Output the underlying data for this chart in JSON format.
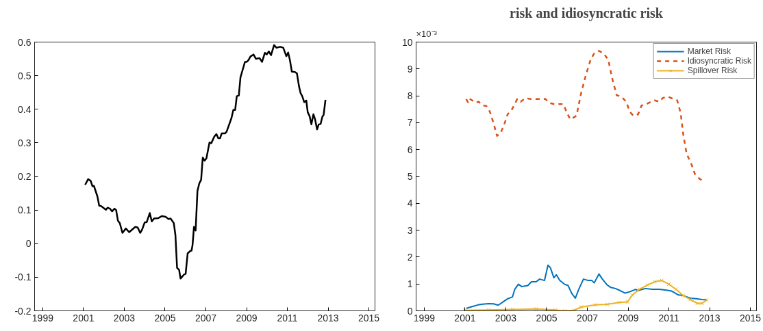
{
  "chart_data": [
    {
      "type": "line",
      "xlim": [
        1998.6,
        2015.3
      ],
      "ylim": [
        -0.2,
        0.6
      ],
      "xticks": [
        1999,
        2001,
        2003,
        2005,
        2007,
        2009,
        2011,
        2013,
        2015
      ],
      "yticks": [
        -0.2,
        -0.1,
        0,
        0.1,
        0.2,
        0.3,
        0.4,
        0.5,
        0.6
      ],
      "grid": false,
      "legend": false,
      "series": [
        {
          "color": "#000000",
          "x": [
            2001.08,
            2001.23,
            2001.35,
            2001.44,
            2001.51,
            2001.68,
            2001.77,
            2001.86,
            2002.1,
            2002.18,
            2002.3,
            2002.4,
            2002.52,
            2002.6,
            2002.69,
            2002.78,
            2002.91,
            2003.08,
            2003.24,
            2003.54,
            2003.66,
            2003.78,
            2003.87,
            2004.0,
            2004.1,
            2004.25,
            2004.35,
            2004.46,
            2004.67,
            2004.85,
            2005.03,
            2005.17,
            2005.27,
            2005.43,
            2005.51,
            2005.59,
            2005.69,
            2005.76,
            2005.93,
            2006.01,
            2006.11,
            2006.23,
            2006.3,
            2006.35,
            2006.42,
            2006.5,
            2006.59,
            2006.68,
            2006.77,
            2006.85,
            2006.94,
            2007.03,
            2007.18,
            2007.27,
            2007.42,
            2007.52,
            2007.61,
            2007.7,
            2007.78,
            2007.94,
            2008.02,
            2008.26,
            2008.35,
            2008.44,
            2008.52,
            2008.62,
            2008.7,
            2008.92,
            2009.01,
            2009.1,
            2009.19,
            2009.34,
            2009.46,
            2009.64,
            2009.76,
            2009.9,
            2009.99,
            2010.09,
            2010.2,
            2010.35,
            2010.47,
            2010.65,
            2010.8,
            2010.95,
            2011.04,
            2011.13,
            2011.22,
            2011.37,
            2011.47,
            2011.57,
            2011.65,
            2011.73,
            2011.83,
            2011.93,
            2012.0,
            2012.09,
            2012.18,
            2012.28,
            2012.36,
            2012.46,
            2012.54,
            2012.63,
            2012.72,
            2012.78,
            2012.87
          ],
          "values": [
            0.175,
            0.192,
            0.187,
            0.171,
            0.172,
            0.141,
            0.113,
            0.112,
            0.101,
            0.107,
            0.104,
            0.096,
            0.104,
            0.1,
            0.068,
            0.061,
            0.032,
            0.045,
            0.034,
            0.05,
            0.048,
            0.032,
            0.041,
            0.063,
            0.064,
            0.091,
            0.066,
            0.075,
            0.076,
            0.082,
            0.08,
            0.073,
            0.075,
            0.061,
            0.025,
            -0.072,
            -0.078,
            -0.104,
            -0.092,
            -0.09,
            -0.029,
            -0.022,
            -0.021,
            -0.004,
            0.05,
            0.039,
            0.157,
            0.179,
            0.19,
            0.256,
            0.247,
            0.254,
            0.301,
            0.299,
            0.319,
            0.326,
            0.314,
            0.314,
            0.328,
            0.328,
            0.333,
            0.374,
            0.398,
            0.398,
            0.439,
            0.441,
            0.495,
            0.541,
            0.541,
            0.547,
            0.557,
            0.563,
            0.55,
            0.552,
            0.541,
            0.568,
            0.563,
            0.572,
            0.561,
            0.591,
            0.583,
            0.586,
            0.583,
            0.558,
            0.569,
            0.545,
            0.512,
            0.511,
            0.507,
            0.469,
            0.448,
            0.439,
            0.421,
            0.426,
            0.391,
            0.38,
            0.355,
            0.385,
            0.37,
            0.34,
            0.355,
            0.356,
            0.378,
            0.383,
            0.428
          ]
        }
      ]
    },
    {
      "type": "line",
      "title": "risk and idiosyncratic risk",
      "annotations": [
        "×10⁻³"
      ],
      "xlim": [
        1998.6,
        2015.3
      ],
      "ylim": [
        0,
        10
      ],
      "xticks": [
        1999,
        2001,
        2003,
        2005,
        2007,
        2009,
        2011,
        2013,
        2015
      ],
      "yticks": [
        0,
        1,
        2,
        3,
        4,
        5,
        6,
        7,
        8,
        9,
        10
      ],
      "grid": false,
      "legend": "top right",
      "series": [
        {
          "name": "Market Risk",
          "color": "#0072bd",
          "line_style": "solid",
          "x": [
            2001.06,
            2001.35,
            2001.64,
            2001.87,
            2002.16,
            2002.4,
            2002.63,
            2002.92,
            2003.09,
            2003.33,
            2003.44,
            2003.62,
            2003.79,
            2004.08,
            2004.26,
            2004.49,
            2004.66,
            2004.9,
            2005.07,
            2005.19,
            2005.36,
            2005.48,
            2005.65,
            2005.88,
            2006.06,
            2006.23,
            2006.41,
            2006.58,
            2006.81,
            2007.05,
            2007.22,
            2007.34,
            2007.57,
            2007.74,
            2007.98,
            2008.15,
            2008.38,
            2008.62,
            2008.85,
            2009.08,
            2009.37,
            2009.49,
            2009.84,
            2010.19,
            2010.53,
            2010.88,
            2011.12,
            2011.47,
            2011.7,
            2012.05,
            2012.33,
            2012.63,
            2012.86
          ],
          "values": [
            0.09,
            0.16,
            0.22,
            0.25,
            0.27,
            0.26,
            0.21,
            0.36,
            0.45,
            0.52,
            0.8,
            0.99,
            0.9,
            0.94,
            1.08,
            1.08,
            1.18,
            1.13,
            1.7,
            1.6,
            1.23,
            1.34,
            1.13,
            0.99,
            0.94,
            0.66,
            0.47,
            0.8,
            1.18,
            1.13,
            1.13,
            1.04,
            1.37,
            1.18,
            0.96,
            0.87,
            0.83,
            0.75,
            0.66,
            0.71,
            0.8,
            0.75,
            0.83,
            0.8,
            0.8,
            0.77,
            0.74,
            0.59,
            0.57,
            0.47,
            0.45,
            0.42,
            0.41
          ]
        },
        {
          "name": "Idiosyncratic Risk",
          "color": "#d95319",
          "line_style": "dashed",
          "x": [
            2001.06,
            2001.14,
            2001.21,
            2001.35,
            2001.52,
            2001.67,
            2001.87,
            2002.05,
            2002.22,
            2002.4,
            2002.57,
            2002.74,
            2002.92,
            2003.09,
            2003.27,
            2003.44,
            2003.56,
            2003.73,
            2003.97,
            2004.2,
            2004.43,
            2004.72,
            2004.95,
            2005.13,
            2005.36,
            2005.59,
            2005.83,
            2006.0,
            2006.17,
            2006.47,
            2006.7,
            2006.93,
            2007.16,
            2007.34,
            2007.57,
            2007.8,
            2008.03,
            2008.21,
            2008.44,
            2008.67,
            2008.91,
            2009.08,
            2009.26,
            2009.49,
            2009.66,
            2009.9,
            2010.13,
            2010.3,
            2010.53,
            2010.71,
            2010.94,
            2011.17,
            2011.41,
            2011.58,
            2011.7,
            2011.87,
            2012.1,
            2012.28,
            2012.51,
            2012.63
          ],
          "values": [
            7.88,
            7.76,
            7.9,
            7.83,
            7.74,
            7.78,
            7.64,
            7.62,
            7.41,
            6.98,
            6.51,
            6.6,
            6.93,
            7.31,
            7.45,
            7.69,
            7.88,
            7.78,
            7.92,
            7.88,
            7.88,
            7.88,
            7.88,
            7.74,
            7.69,
            7.69,
            7.69,
            7.36,
            7.12,
            7.26,
            8.11,
            8.77,
            9.34,
            9.58,
            9.67,
            9.58,
            9.34,
            8.68,
            8.02,
            7.97,
            7.78,
            7.41,
            7.26,
            7.31,
            7.64,
            7.69,
            7.78,
            7.83,
            7.78,
            7.92,
            7.97,
            7.9,
            7.83,
            7.36,
            6.6,
            5.85,
            5.47,
            5.09,
            4.91,
            4.86
          ]
        },
        {
          "name": "Spillover Risk",
          "color": "#edb120",
          "line_style": "solid",
          "marker": "cross",
          "x": [
            2001.0,
            2002.16,
            2003.33,
            2004.49,
            2005.42,
            2005.88,
            2006.35,
            2006.7,
            2007.4,
            2007.98,
            2008.56,
            2008.97,
            2009.2,
            2009.55,
            2009.95,
            2010.3,
            2010.65,
            2011.0,
            2011.35,
            2011.7,
            2012.05,
            2012.4,
            2012.63,
            2012.86
          ],
          "values": [
            0.02,
            0.03,
            0.05,
            0.07,
            0.03,
            0,
            0.02,
            0.14,
            0.22,
            0.24,
            0.31,
            0.33,
            0.58,
            0.8,
            0.96,
            1.08,
            1.13,
            0.99,
            0.8,
            0.57,
            0.42,
            0.28,
            0.28,
            0.4
          ]
        }
      ]
    }
  ]
}
